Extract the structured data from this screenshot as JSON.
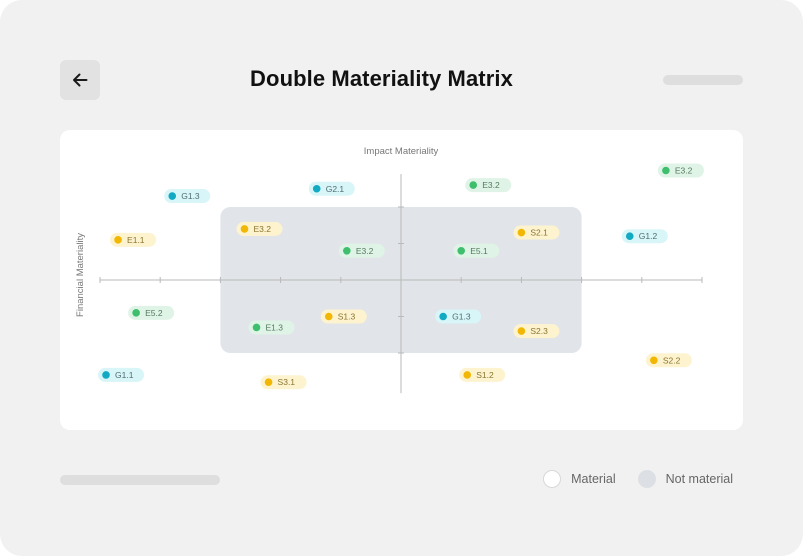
{
  "header": {
    "title": "Double Materiality Matrix",
    "back_icon": "arrow-left-icon"
  },
  "legend": {
    "material_label": "Material",
    "not_material_label": "Not material"
  },
  "colors": {
    "page_bg": "#f1f1f1",
    "card_bg": "#ffffff",
    "non_material_zone": "#e1e4e8",
    "axis": "#b9b9b9",
    "G": {
      "dot": "#12a9c2",
      "pill": "#d8f5f8",
      "text": "#4f6d73"
    },
    "E": {
      "dot": "#3fbf6d",
      "pill": "#dff4e6",
      "text": "#557a60"
    },
    "S": {
      "dot": "#f2b705",
      "pill": "#fdf3cf",
      "text": "#8a7530"
    }
  },
  "chart_data": {
    "type": "scatter",
    "title": "Double Materiality Matrix",
    "xlabel": "Impact Materiality",
    "ylabel": "Financial Materiality",
    "xlim": [
      -5,
      5
    ],
    "ylim": [
      -3,
      3
    ],
    "grid": false,
    "legend_position": "bottom-right",
    "non_material_zone": {
      "x": [
        -3,
        3
      ],
      "y": [
        -2,
        2
      ]
    },
    "points": [
      {
        "label": "G1.3",
        "group": "G",
        "x": -3.8,
        "y": 2.3
      },
      {
        "label": "G2.1",
        "group": "G",
        "x": -1.4,
        "y": 2.5
      },
      {
        "label": "E3.2",
        "group": "E",
        "x": 1.2,
        "y": 2.6
      },
      {
        "label": "E3.2",
        "group": "E",
        "x": 4.4,
        "y": 3.0
      },
      {
        "label": "E1.1",
        "group": "S",
        "x": -4.7,
        "y": 1.1
      },
      {
        "label": "E3.2",
        "group": "S",
        "x": -2.6,
        "y": 1.4
      },
      {
        "label": "S2.1",
        "group": "S",
        "x": 2.0,
        "y": 1.3
      },
      {
        "label": "G1.2",
        "group": "G",
        "x": 3.8,
        "y": 1.2
      },
      {
        "label": "E3.2",
        "group": "E",
        "x": -0.9,
        "y": 0.8
      },
      {
        "label": "E5.1",
        "group": "E",
        "x": 1.0,
        "y": 0.8
      },
      {
        "label": "E5.2",
        "group": "E",
        "x": -4.4,
        "y": -0.9
      },
      {
        "label": "E1.3",
        "group": "E",
        "x": -2.4,
        "y": -1.3
      },
      {
        "label": "S1.3",
        "group": "S",
        "x": -1.2,
        "y": -1.0
      },
      {
        "label": "G1.3",
        "group": "G",
        "x": 0.7,
        "y": -1.0
      },
      {
        "label": "S2.3",
        "group": "S",
        "x": 2.0,
        "y": -1.4
      },
      {
        "label": "G1.1",
        "group": "G",
        "x": -4.9,
        "y": -2.6
      },
      {
        "label": "S3.1",
        "group": "S",
        "x": -2.2,
        "y": -2.8
      },
      {
        "label": "S1.2",
        "group": "S",
        "x": 1.1,
        "y": -2.6
      },
      {
        "label": "S2.2",
        "group": "S",
        "x": 4.2,
        "y": -2.2
      }
    ]
  }
}
